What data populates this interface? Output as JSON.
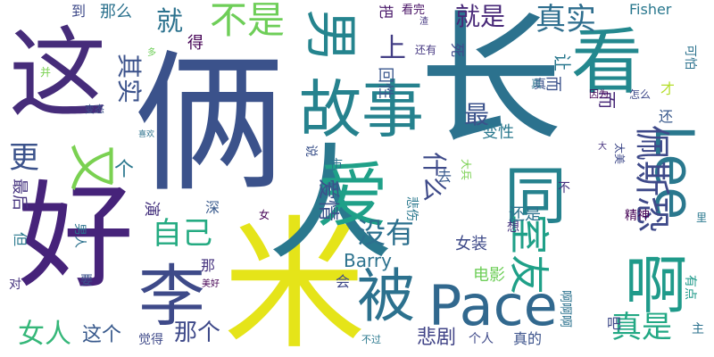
{
  "palette": {
    "purple": "#46237a",
    "indigo": "#3b4a8c",
    "blue": "#31688e",
    "teal": "#26828e",
    "green": "#35b779",
    "lime": "#a0da39",
    "yellow": "#f0e51f"
  },
  "words": [
    {
      "text": "这",
      "color": "#462c7a"
    },
    {
      "text": "俩",
      "color": "#3b528b"
    },
    {
      "text": "好",
      "color": "#46237a"
    },
    {
      "text": "米",
      "color": "#e5e419"
    },
    {
      "text": "长",
      "color": "#2c728e"
    },
    {
      "text": "人",
      "color": "#2a788e"
    },
    {
      "text": "Lee",
      "color": "#2a788e"
    },
    {
      "text": "看",
      "color": "#23888e"
    },
    {
      "text": "男",
      "color": "#25848e"
    },
    {
      "text": "故事",
      "color": "#26828e"
    },
    {
      "text": "爱",
      "color": "#1fa088"
    },
    {
      "text": "李",
      "color": "#3e4a89"
    },
    {
      "text": "被",
      "color": "#2c718e"
    },
    {
      "text": "Pace",
      "color": "#31688e"
    },
    {
      "text": "啊",
      "color": "#1f9a8a"
    },
    {
      "text": "同",
      "color": "#26828e"
    },
    {
      "text": "佩斯恐",
      "color": "#3e4989"
    },
    {
      "text": "又",
      "color": "#7ad151"
    },
    {
      "text": "不是",
      "color": "#6ece58"
    },
    {
      "text": "真实",
      "color": "#2e6e8e"
    },
    {
      "text": "室友",
      "color": "#1fa088"
    },
    {
      "text": "就",
      "color": "#2c728e"
    },
    {
      "text": "上",
      "color": "#433e85"
    },
    {
      "text": "什么",
      "color": "#3e4a89"
    },
    {
      "text": "没有",
      "color": "#2d708e"
    },
    {
      "text": "自己",
      "color": "#25ab82"
    },
    {
      "text": "就是",
      "color": "#482878"
    },
    {
      "text": "真是",
      "color": "#22a884"
    },
    {
      "text": "女人",
      "color": "#35b779"
    },
    {
      "text": "那个",
      "color": "#3e4989"
    },
    {
      "text": "这个",
      "color": "#38598c"
    },
    {
      "text": "悲剧",
      "color": "#414487"
    },
    {
      "text": "更",
      "color": "#3b528b"
    },
    {
      "text": "最",
      "color": "#3b528b"
    },
    {
      "text": "其实",
      "color": "#3b528b"
    },
    {
      "text": "个",
      "color": "#2a788e"
    },
    {
      "text": "演",
      "color": "#46337f"
    },
    {
      "text": "爱情",
      "color": "#3b528b"
    },
    {
      "text": "女装",
      "color": "#3e4a89"
    },
    {
      "text": "Barry",
      "color": "#2c728e"
    },
    {
      "text": "电影",
      "color": "#6ece58"
    },
    {
      "text": "变性",
      "color": "#2a788e"
    },
    {
      "text": "还是",
      "color": "#2c728e"
    },
    {
      "text": "精神",
      "color": "#440154"
    },
    {
      "text": "Fisher",
      "color": "#2a788e"
    },
    {
      "text": "到",
      "color": "#3e4989"
    },
    {
      "text": "那么",
      "color": "#2c728e"
    },
    {
      "text": "把",
      "color": "#481769"
    },
    {
      "text": "看完",
      "color": "#471164"
    },
    {
      "text": "得",
      "color": "#440154"
    },
    {
      "text": "还有",
      "color": "#453781"
    },
    {
      "text": "死",
      "color": "#3e4989"
    },
    {
      "text": "回性",
      "color": "#39568c"
    },
    {
      "text": "让",
      "color": "#2a788e"
    },
    {
      "text": "而",
      "color": "#482878"
    },
    {
      "text": "可怕",
      "color": "#2c728e"
    },
    {
      "text": "因为",
      "color": "#440154"
    },
    {
      "text": "怎么",
      "color": "#3e4989"
    },
    {
      "text": "才",
      "color": "#b5de2b"
    },
    {
      "text": "还",
      "color": "#38598c"
    },
    {
      "text": "太美",
      "color": "#3e4989"
    },
    {
      "text": "变态",
      "color": "#3b528b"
    },
    {
      "text": "喜欢",
      "color": "#2c728e"
    },
    {
      "text": "并",
      "color": "#7ad151"
    },
    {
      "text": "多",
      "color": "#6ece58"
    },
    {
      "text": "最后",
      "color": "#46337f"
    },
    {
      "text": "深",
      "color": "#38598c"
    },
    {
      "text": "女",
      "color": "#440154"
    },
    {
      "text": "但",
      "color": "#2a788e"
    },
    {
      "text": "男人",
      "color": "#2c728e"
    },
    {
      "text": "那",
      "color": "#46337f"
    },
    {
      "text": "对",
      "color": "#46337f"
    },
    {
      "text": "要",
      "color": "#3b528b"
    },
    {
      "text": "美好",
      "color": "#440154"
    },
    {
      "text": "会",
      "color": "#3e4989"
    },
    {
      "text": "说",
      "color": "#3b528b"
    },
    {
      "text": "市",
      "color": "#2c728e"
    },
    {
      "text": "去",
      "color": "#38598c"
    },
    {
      "text": "大兵",
      "color": "#7ad151"
    },
    {
      "text": "不",
      "color": "#46337f"
    },
    {
      "text": "悲伤",
      "color": "#2a788e"
    },
    {
      "text": "想",
      "color": "#46337f"
    },
    {
      "text": "里",
      "color": "#2a788e"
    },
    {
      "text": "有点",
      "color": "#1f9a8a"
    },
    {
      "text": "吧",
      "color": "#3e4989"
    },
    {
      "text": "主",
      "color": "#2c728e"
    },
    {
      "text": "真的",
      "color": "#3b528b"
    },
    {
      "text": "个人",
      "color": "#3e4989"
    },
    {
      "text": "不过",
      "color": "#2a788e"
    },
    {
      "text": "啊啊啊",
      "color": "#2c728e"
    },
    {
      "text": "觉得",
      "color": "#3e4989"
    },
    {
      "text": "真",
      "color": "#3b528b"
    },
    {
      "text": "大",
      "color": "#46337f"
    },
    {
      "text": "渣",
      "color": "#453781"
    },
    {
      "text": "而",
      "color": "#3b528b"
    },
    {
      "text": "真",
      "color": "#2c728e"
    }
  ]
}
